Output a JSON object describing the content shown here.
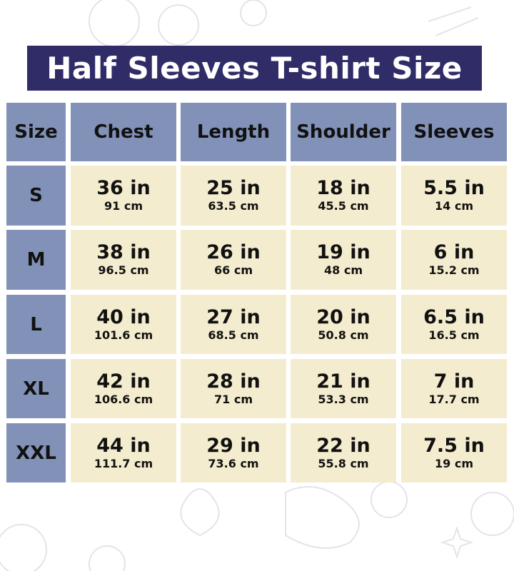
{
  "title": "Half Sleeves T-shirt Size",
  "colors": {
    "title_bg": "#2f2c68",
    "header_bg": "#8191b7",
    "cell_bg": "#f4ecce"
  },
  "table": {
    "headers": [
      "Size",
      "Chest",
      "Length",
      "Shoulder",
      "Sleeves"
    ],
    "rows": [
      {
        "size": "S",
        "values": [
          {
            "in": "36 in",
            "cm": "91 cm"
          },
          {
            "in": "25 in",
            "cm": "63.5 cm"
          },
          {
            "in": "18 in",
            "cm": "45.5 cm"
          },
          {
            "in": "5.5 in",
            "cm": "14 cm"
          }
        ]
      },
      {
        "size": "M",
        "values": [
          {
            "in": "38 in",
            "cm": "96.5 cm"
          },
          {
            "in": "26 in",
            "cm": "66 cm"
          },
          {
            "in": "19 in",
            "cm": "48 cm"
          },
          {
            "in": "6 in",
            "cm": "15.2 cm"
          }
        ]
      },
      {
        "size": "L",
        "values": [
          {
            "in": "40 in",
            "cm": "101.6 cm"
          },
          {
            "in": "27 in",
            "cm": "68.5 cm"
          },
          {
            "in": "20 in",
            "cm": "50.8 cm"
          },
          {
            "in": "6.5 in",
            "cm": "16.5 cm"
          }
        ]
      },
      {
        "size": "XL",
        "values": [
          {
            "in": "42 in",
            "cm": "106.6 cm"
          },
          {
            "in": "28 in",
            "cm": "71 cm"
          },
          {
            "in": "21 in",
            "cm": "53.3 cm"
          },
          {
            "in": "7 in",
            "cm": "17.7 cm"
          }
        ]
      },
      {
        "size": "XXL",
        "values": [
          {
            "in": "44 in",
            "cm": "111.7 cm"
          },
          {
            "in": "29 in",
            "cm": "73.6 cm"
          },
          {
            "in": "22 in",
            "cm": "55.8 cm"
          },
          {
            "in": "7.5 in",
            "cm": "19 cm"
          }
        ]
      }
    ]
  }
}
